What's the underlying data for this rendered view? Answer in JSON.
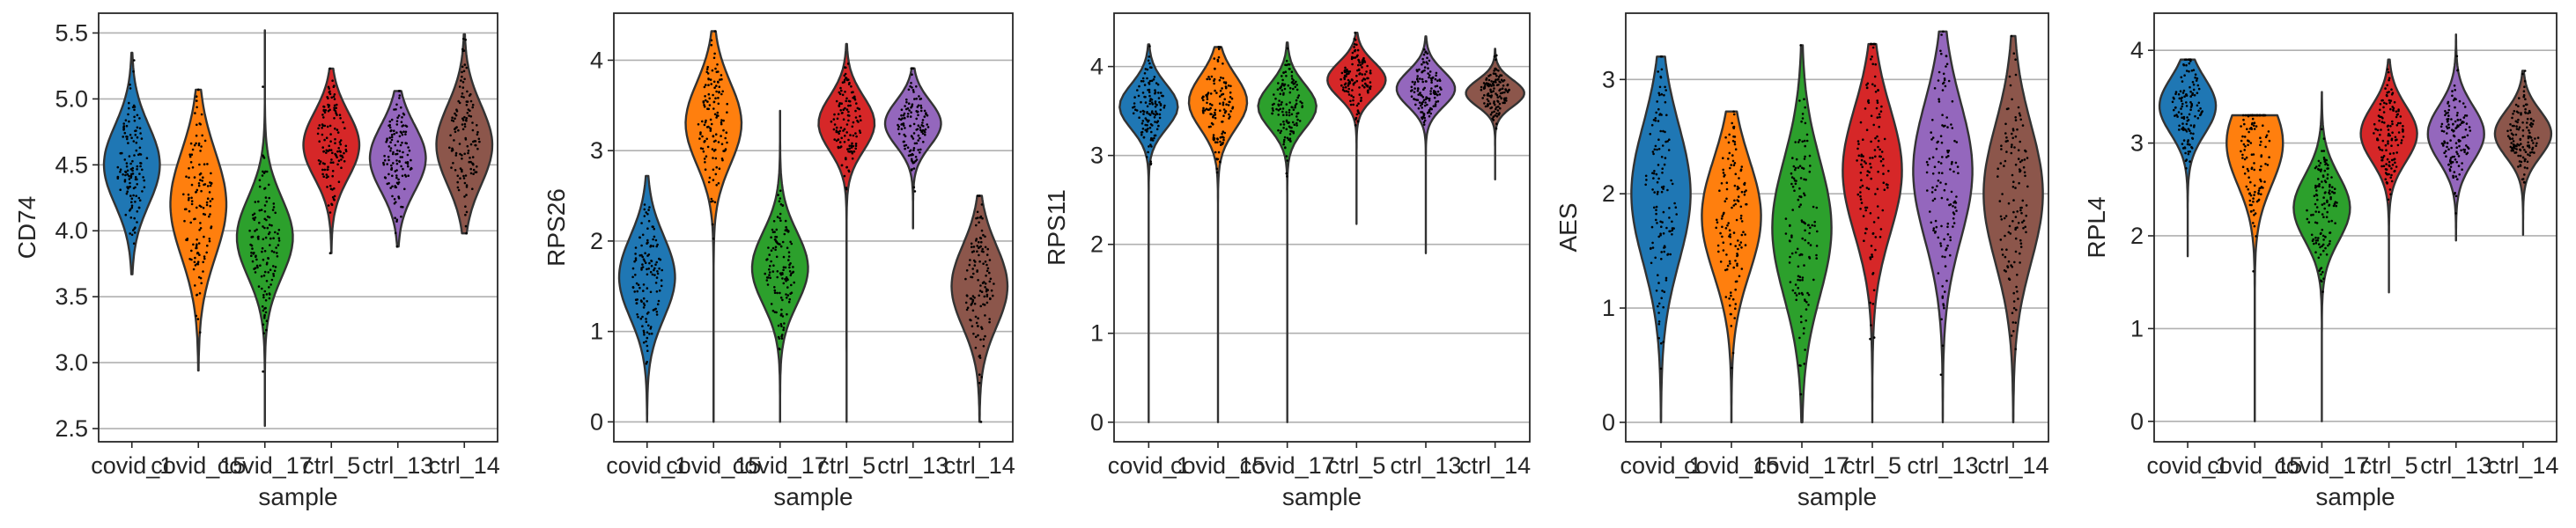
{
  "figure": {
    "xlabel": "sample",
    "categories": [
      "covid_1",
      "covid_15",
      "covid_17",
      "ctrl_5",
      "ctrl_13",
      "ctrl_14"
    ],
    "colors": [
      "#1f77b4",
      "#ff7f0e",
      "#2ca02c",
      "#d62728",
      "#9467bd",
      "#8c564b"
    ]
  },
  "chart_data": [
    {
      "type": "violin",
      "ylabel": "CD74",
      "ylim": [
        2.4,
        5.65
      ],
      "yticks": [
        "2.5",
        "3.0",
        "3.5",
        "4.0",
        "4.5",
        "5.0",
        "5.5"
      ],
      "grid": true,
      "categories": [
        "covid_1",
        "covid_15",
        "covid_17",
        "ctrl_5",
        "ctrl_13",
        "ctrl_14"
      ],
      "series": [
        {
          "min": 3.67,
          "max": 5.35,
          "center": 4.5,
          "spread": 0.3
        },
        {
          "min": 2.94,
          "max": 5.07,
          "center": 4.2,
          "spread": 0.4
        },
        {
          "min": 2.52,
          "max": 5.52,
          "center": 3.95,
          "spread": 0.3
        },
        {
          "min": 3.83,
          "max": 5.23,
          "center": 4.65,
          "spread": 0.25
        },
        {
          "min": 3.88,
          "max": 5.06,
          "center": 4.55,
          "spread": 0.25
        },
        {
          "min": 3.98,
          "max": 5.49,
          "center": 4.65,
          "spread": 0.3
        }
      ]
    },
    {
      "type": "violin",
      "ylabel": "RPS26",
      "ylim": [
        -0.22,
        4.52
      ],
      "yticks": [
        "0",
        "1",
        "2",
        "3",
        "4"
      ],
      "grid": true,
      "categories": [
        "covid_1",
        "covid_15",
        "covid_17",
        "ctrl_5",
        "ctrl_13",
        "ctrl_14"
      ],
      "series": [
        {
          "min": 0.0,
          "max": 2.72,
          "center": 1.6,
          "spread": 0.45
        },
        {
          "min": 0.0,
          "max": 4.32,
          "center": 3.3,
          "spread": 0.45
        },
        {
          "min": 0.0,
          "max": 3.44,
          "center": 1.7,
          "spread": 0.4
        },
        {
          "min": 0.0,
          "max": 4.18,
          "center": 3.3,
          "spread": 0.3
        },
        {
          "min": 2.14,
          "max": 3.91,
          "center": 3.3,
          "spread": 0.25
        },
        {
          "min": 0.0,
          "max": 2.5,
          "center": 1.5,
          "spread": 0.45
        }
      ]
    },
    {
      "type": "violin",
      "ylabel": "RPS11",
      "ylim": [
        -0.22,
        4.6
      ],
      "yticks": [
        "0",
        "1",
        "2",
        "3",
        "4"
      ],
      "grid": true,
      "categories": [
        "covid_1",
        "covid_15",
        "covid_17",
        "ctrl_5",
        "ctrl_13",
        "ctrl_14"
      ],
      "series": [
        {
          "min": 0.0,
          "max": 4.25,
          "center": 3.55,
          "spread": 0.25
        },
        {
          "min": 0.0,
          "max": 4.22,
          "center": 3.6,
          "spread": 0.3
        },
        {
          "min": 0.0,
          "max": 4.27,
          "center": 3.55,
          "spread": 0.25
        },
        {
          "min": 2.23,
          "max": 4.38,
          "center": 3.85,
          "spread": 0.2
        },
        {
          "min": 1.9,
          "max": 4.34,
          "center": 3.75,
          "spread": 0.2
        },
        {
          "min": 2.73,
          "max": 4.2,
          "center": 3.7,
          "spread": 0.15
        }
      ]
    },
    {
      "type": "violin",
      "ylabel": "AES",
      "ylim": [
        -0.17,
        3.58
      ],
      "yticks": [
        "0",
        "1",
        "2",
        "3"
      ],
      "grid": true,
      "categories": [
        "covid_1",
        "covid_15",
        "covid_17",
        "ctrl_5",
        "ctrl_13",
        "ctrl_14"
      ],
      "series": [
        {
          "min": 0.0,
          "max": 3.2,
          "center": 2.0,
          "spread": 0.6
        },
        {
          "min": 0.0,
          "max": 2.72,
          "center": 1.8,
          "spread": 0.5
        },
        {
          "min": 0.0,
          "max": 3.3,
          "center": 1.7,
          "spread": 0.6
        },
        {
          "min": 0.0,
          "max": 3.31,
          "center": 2.2,
          "spread": 0.55
        },
        {
          "min": 0.0,
          "max": 3.42,
          "center": 2.2,
          "spread": 0.6
        },
        {
          "min": 0.0,
          "max": 3.38,
          "center": 2.0,
          "spread": 0.6
        }
      ]
    },
    {
      "type": "violin",
      "ylabel": "RPL4",
      "ylim": [
        -0.22,
        4.4
      ],
      "yticks": [
        "0",
        "1",
        "2",
        "3",
        "4"
      ],
      "grid": true,
      "categories": [
        "covid_1",
        "covid_15",
        "covid_17",
        "ctrl_5",
        "ctrl_13",
        "ctrl_14"
      ],
      "series": [
        {
          "min": 1.78,
          "max": 3.9,
          "center": 3.4,
          "spread": 0.3
        },
        {
          "min": 0.0,
          "max": 3.3,
          "center": 3.0,
          "spread": 0.45
        },
        {
          "min": 0.0,
          "max": 3.55,
          "center": 2.3,
          "spread": 0.35
        },
        {
          "min": 1.39,
          "max": 3.9,
          "center": 3.1,
          "spread": 0.3
        },
        {
          "min": 1.95,
          "max": 4.17,
          "center": 3.1,
          "spread": 0.3
        },
        {
          "min": 2.01,
          "max": 3.78,
          "center": 3.1,
          "spread": 0.25
        }
      ]
    }
  ]
}
